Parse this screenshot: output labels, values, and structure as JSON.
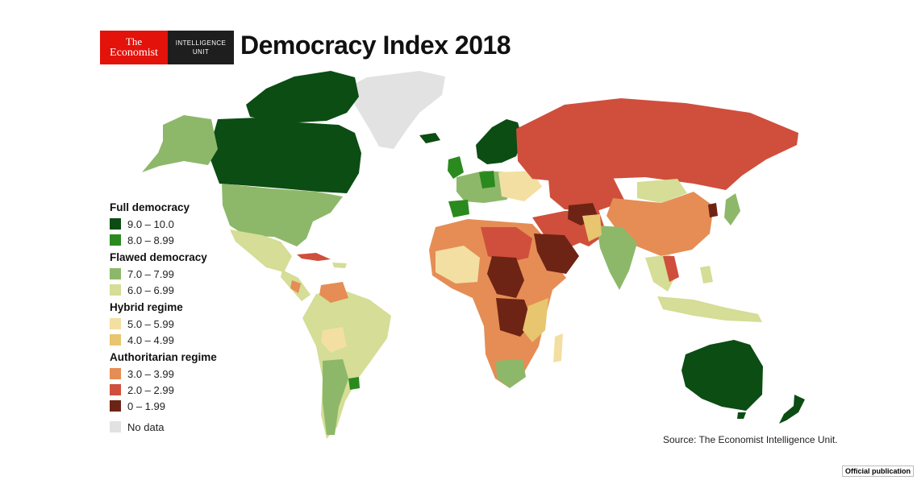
{
  "logo": {
    "line1": "The",
    "line2": "Economist",
    "unit_line1": "INTELLIGENCE",
    "unit_line2": "UNIT"
  },
  "title": "Democracy Index 2018",
  "legend": {
    "groups": [
      {
        "heading": "Full democracy",
        "items": [
          {
            "label": "9.0 – 10.0",
            "color": "#0b4d13"
          },
          {
            "label": "8.0 – 8.99",
            "color": "#2a8a1e"
          }
        ]
      },
      {
        "heading": "Flawed democracy",
        "items": [
          {
            "label": "7.0 – 7.99",
            "color": "#8db86a"
          },
          {
            "label": "6.0 – 6.99",
            "color": "#d5dd96"
          }
        ]
      },
      {
        "heading": "Hybrid regime",
        "items": [
          {
            "label": "5.0 – 5.99",
            "color": "#f3dfa2"
          },
          {
            "label": "4.0 – 4.99",
            "color": "#e8c56f"
          }
        ]
      },
      {
        "heading": "Authoritarian regime",
        "items": [
          {
            "label": "3.0 – 3.99",
            "color": "#e58d55"
          },
          {
            "label": "2.0 – 2.99",
            "color": "#cf4f3c"
          },
          {
            "label": "0 – 1.99",
            "color": "#6e2414"
          }
        ]
      }
    ],
    "no_data": {
      "label": "No data",
      "color": "#e2e2e2"
    }
  },
  "source": "Source: The Economist Intelligence Unit.",
  "badge": "Official publication"
}
